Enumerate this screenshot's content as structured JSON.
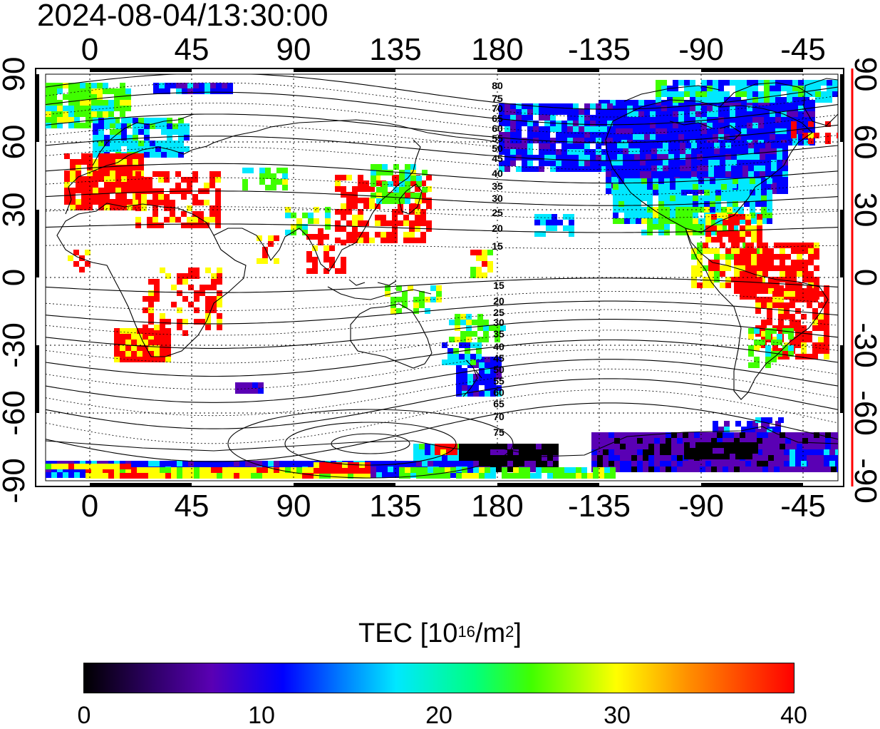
{
  "timestamp": "2024-08-04/13:30:00",
  "map": {
    "projection": "equirectangular",
    "center_longitude": 180,
    "lon_ticks": [
      "0",
      "45",
      "90",
      "135",
      "180",
      "-135",
      "-90",
      "-45"
    ],
    "lat_ticks": [
      "90",
      "60",
      "30",
      "0",
      "-30",
      "-60",
      "-90"
    ],
    "contour_labels_north": [
      "80",
      "75",
      "70",
      "65",
      "60",
      "55",
      "50",
      "45",
      "40",
      "35",
      "30",
      "25",
      "20",
      "15"
    ],
    "contour_labels_south": [
      "15",
      "20",
      "25",
      "30",
      "35",
      "40",
      "45",
      "50",
      "55",
      "60",
      "65",
      "70",
      "75"
    ],
    "right_axis_color": "#ff0000"
  },
  "colorbar": {
    "label_main": "TEC  [10",
    "label_exp1": "16",
    "label_mid": "/m",
    "label_exp2": "2",
    "label_end": "]",
    "min": 0,
    "max": 40,
    "ticks": [
      "0",
      "10",
      "20",
      "30",
      "40"
    ],
    "colors": [
      "#000000",
      "#5a00b4",
      "#0000ff",
      "#00e8ff",
      "#40ff00",
      "#ffff00",
      "#ff0000"
    ]
  }
}
